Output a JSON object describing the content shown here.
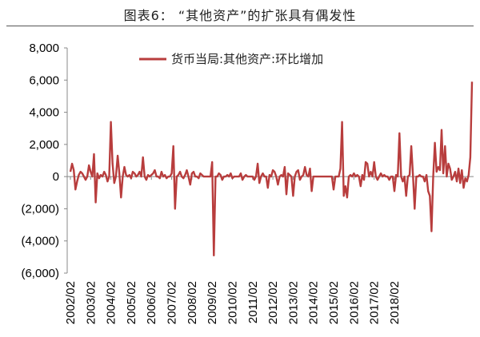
{
  "figure_title": "图表6：   “其他资产”的扩张具有偶发性",
  "chart_data": {
    "type": "line",
    "title": "图表6：   “其他资产”的扩张具有偶发性",
    "xlabel": "",
    "ylabel": "",
    "ylim": [
      -6000,
      8000
    ],
    "yticks": [
      8000,
      6000,
      4000,
      2000,
      0,
      -2000,
      -4000,
      -6000
    ],
    "ytick_labels": [
      "8,000",
      "6,000",
      "4,000",
      "2,000",
      "0",
      "(2,000)",
      "(4,000)",
      "(6,000)"
    ],
    "xtick_labels": [
      "2002/02",
      "2003/02",
      "2004/02",
      "2005/02",
      "2006/02",
      "2007/02",
      "2008/02",
      "2009/02",
      "2010/02",
      "2011/02",
      "2012/02",
      "2013/02",
      "2014/02",
      "2015/02",
      "2016/02",
      "2017/02",
      "2018/02"
    ],
    "x_start": "2002/02",
    "legend_position": "top-center",
    "grid": false,
    "series": [
      {
        "name": "货币当局:其他资产:环比增加",
        "color": "#b83d3d",
        "values": [
          300,
          800,
          400,
          -800,
          -300,
          100,
          300,
          200,
          0,
          -200,
          0,
          700,
          300,
          0,
          1400,
          -1600,
          200,
          -100,
          100,
          0,
          300,
          100,
          -300,
          0,
          3400,
          800,
          -400,
          0,
          1300,
          200,
          -1300,
          0,
          600,
          100,
          0,
          100,
          -100,
          300,
          200,
          0,
          100,
          300,
          0,
          1200,
          0,
          -200,
          100,
          0,
          100,
          200,
          400,
          0,
          0,
          -100,
          300,
          0,
          100,
          -100,
          0,
          0,
          200,
          1900,
          -2000,
          0,
          100,
          300,
          0,
          -100,
          100,
          400,
          0,
          -500,
          200,
          300,
          0,
          0,
          -100,
          200,
          100,
          0,
          0,
          0,
          0,
          0,
          900,
          -4900,
          0,
          0,
          200,
          100,
          -200,
          0,
          0,
          100,
          0,
          200,
          -100,
          0,
          0,
          0,
          0,
          200,
          -200,
          0,
          100,
          0,
          0,
          0,
          0,
          -200,
          0,
          800,
          -400,
          0,
          200,
          0,
          0,
          -700,
          100,
          0,
          400,
          300,
          0,
          -500,
          0,
          100,
          0,
          600,
          -1100,
          200,
          100,
          0,
          -1200,
          0,
          300,
          400,
          -200,
          0,
          100,
          600,
          100,
          0,
          500,
          -900,
          0,
          0,
          0,
          0,
          0,
          0,
          0,
          0,
          0,
          0,
          0,
          0,
          -800,
          0,
          0,
          0,
          500,
          3400,
          -1200,
          -600,
          -1300,
          0,
          100,
          0,
          200,
          0,
          100,
          0,
          -600,
          100,
          -200,
          900,
          800,
          0,
          300,
          0,
          900,
          0,
          -200,
          0,
          200,
          0,
          100,
          0,
          0,
          -200,
          0,
          0,
          -900,
          100,
          0,
          2700,
          0,
          -300,
          0,
          -1200,
          0,
          100,
          1900,
          100,
          -2000,
          0,
          0,
          100,
          0,
          0,
          -300,
          100,
          -900,
          -1200,
          -3400,
          0,
          2100,
          300,
          600,
          400,
          2900,
          200,
          1900,
          0,
          800,
          500,
          -200,
          0,
          300,
          -300,
          500,
          -400,
          400,
          -700,
          -100,
          -300,
          100,
          1200,
          5900
        ]
      }
    ]
  }
}
